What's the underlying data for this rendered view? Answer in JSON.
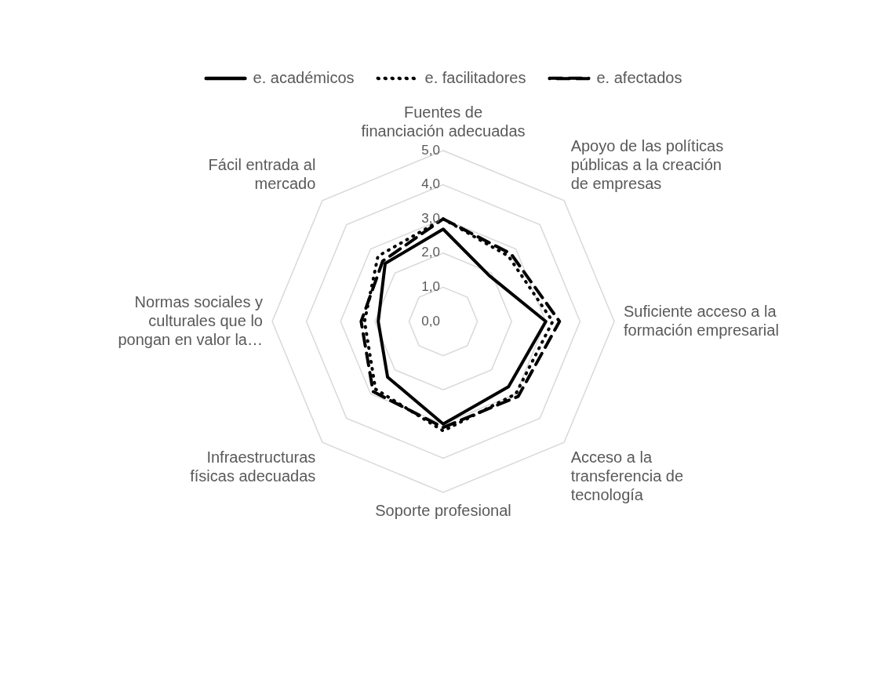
{
  "chart_data": {
    "type": "radar",
    "categories": [
      "Fuentes de financiación adecuadas",
      "Apoyo de las políticas públicas a la creación de empresas",
      "Suficiente acceso a la formación empresarial",
      "Acceso a la transferencia de tecnología",
      "Soporte profesional",
      "Infraestructuras físicas adecuadas",
      "Normas sociales y culturales que lo pongan en valor la…",
      "Fácil entrada al mercado"
    ],
    "series": [
      {
        "name": "e. académicos",
        "color": "#000000",
        "line_style": "solid",
        "values": [
          2.7,
          1.9,
          3.0,
          2.7,
          3.0,
          2.3,
          1.9,
          2.4
        ]
      },
      {
        "name": "e. facilitadores",
        "color": "#000000",
        "line_style": "dotted",
        "values": [
          3.0,
          2.7,
          3.2,
          3.0,
          3.2,
          2.8,
          2.3,
          2.7
        ]
      },
      {
        "name": "e. afectados",
        "color": "#000000",
        "line_style": "dashed",
        "values": [
          3.0,
          2.8,
          3.4,
          3.1,
          3.1,
          2.9,
          2.4,
          2.5
        ]
      }
    ],
    "ylim": [
      0,
      5
    ],
    "yticks": [
      {
        "value": 0,
        "label": "0,0"
      },
      {
        "value": 1,
        "label": "1,0"
      },
      {
        "value": 2,
        "label": "2,0"
      },
      {
        "value": 3,
        "label": "3,0"
      },
      {
        "value": 4,
        "label": "4,0"
      },
      {
        "value": 5,
        "label": "5,0"
      }
    ],
    "grid": true,
    "legend": "top",
    "marker": "none"
  }
}
